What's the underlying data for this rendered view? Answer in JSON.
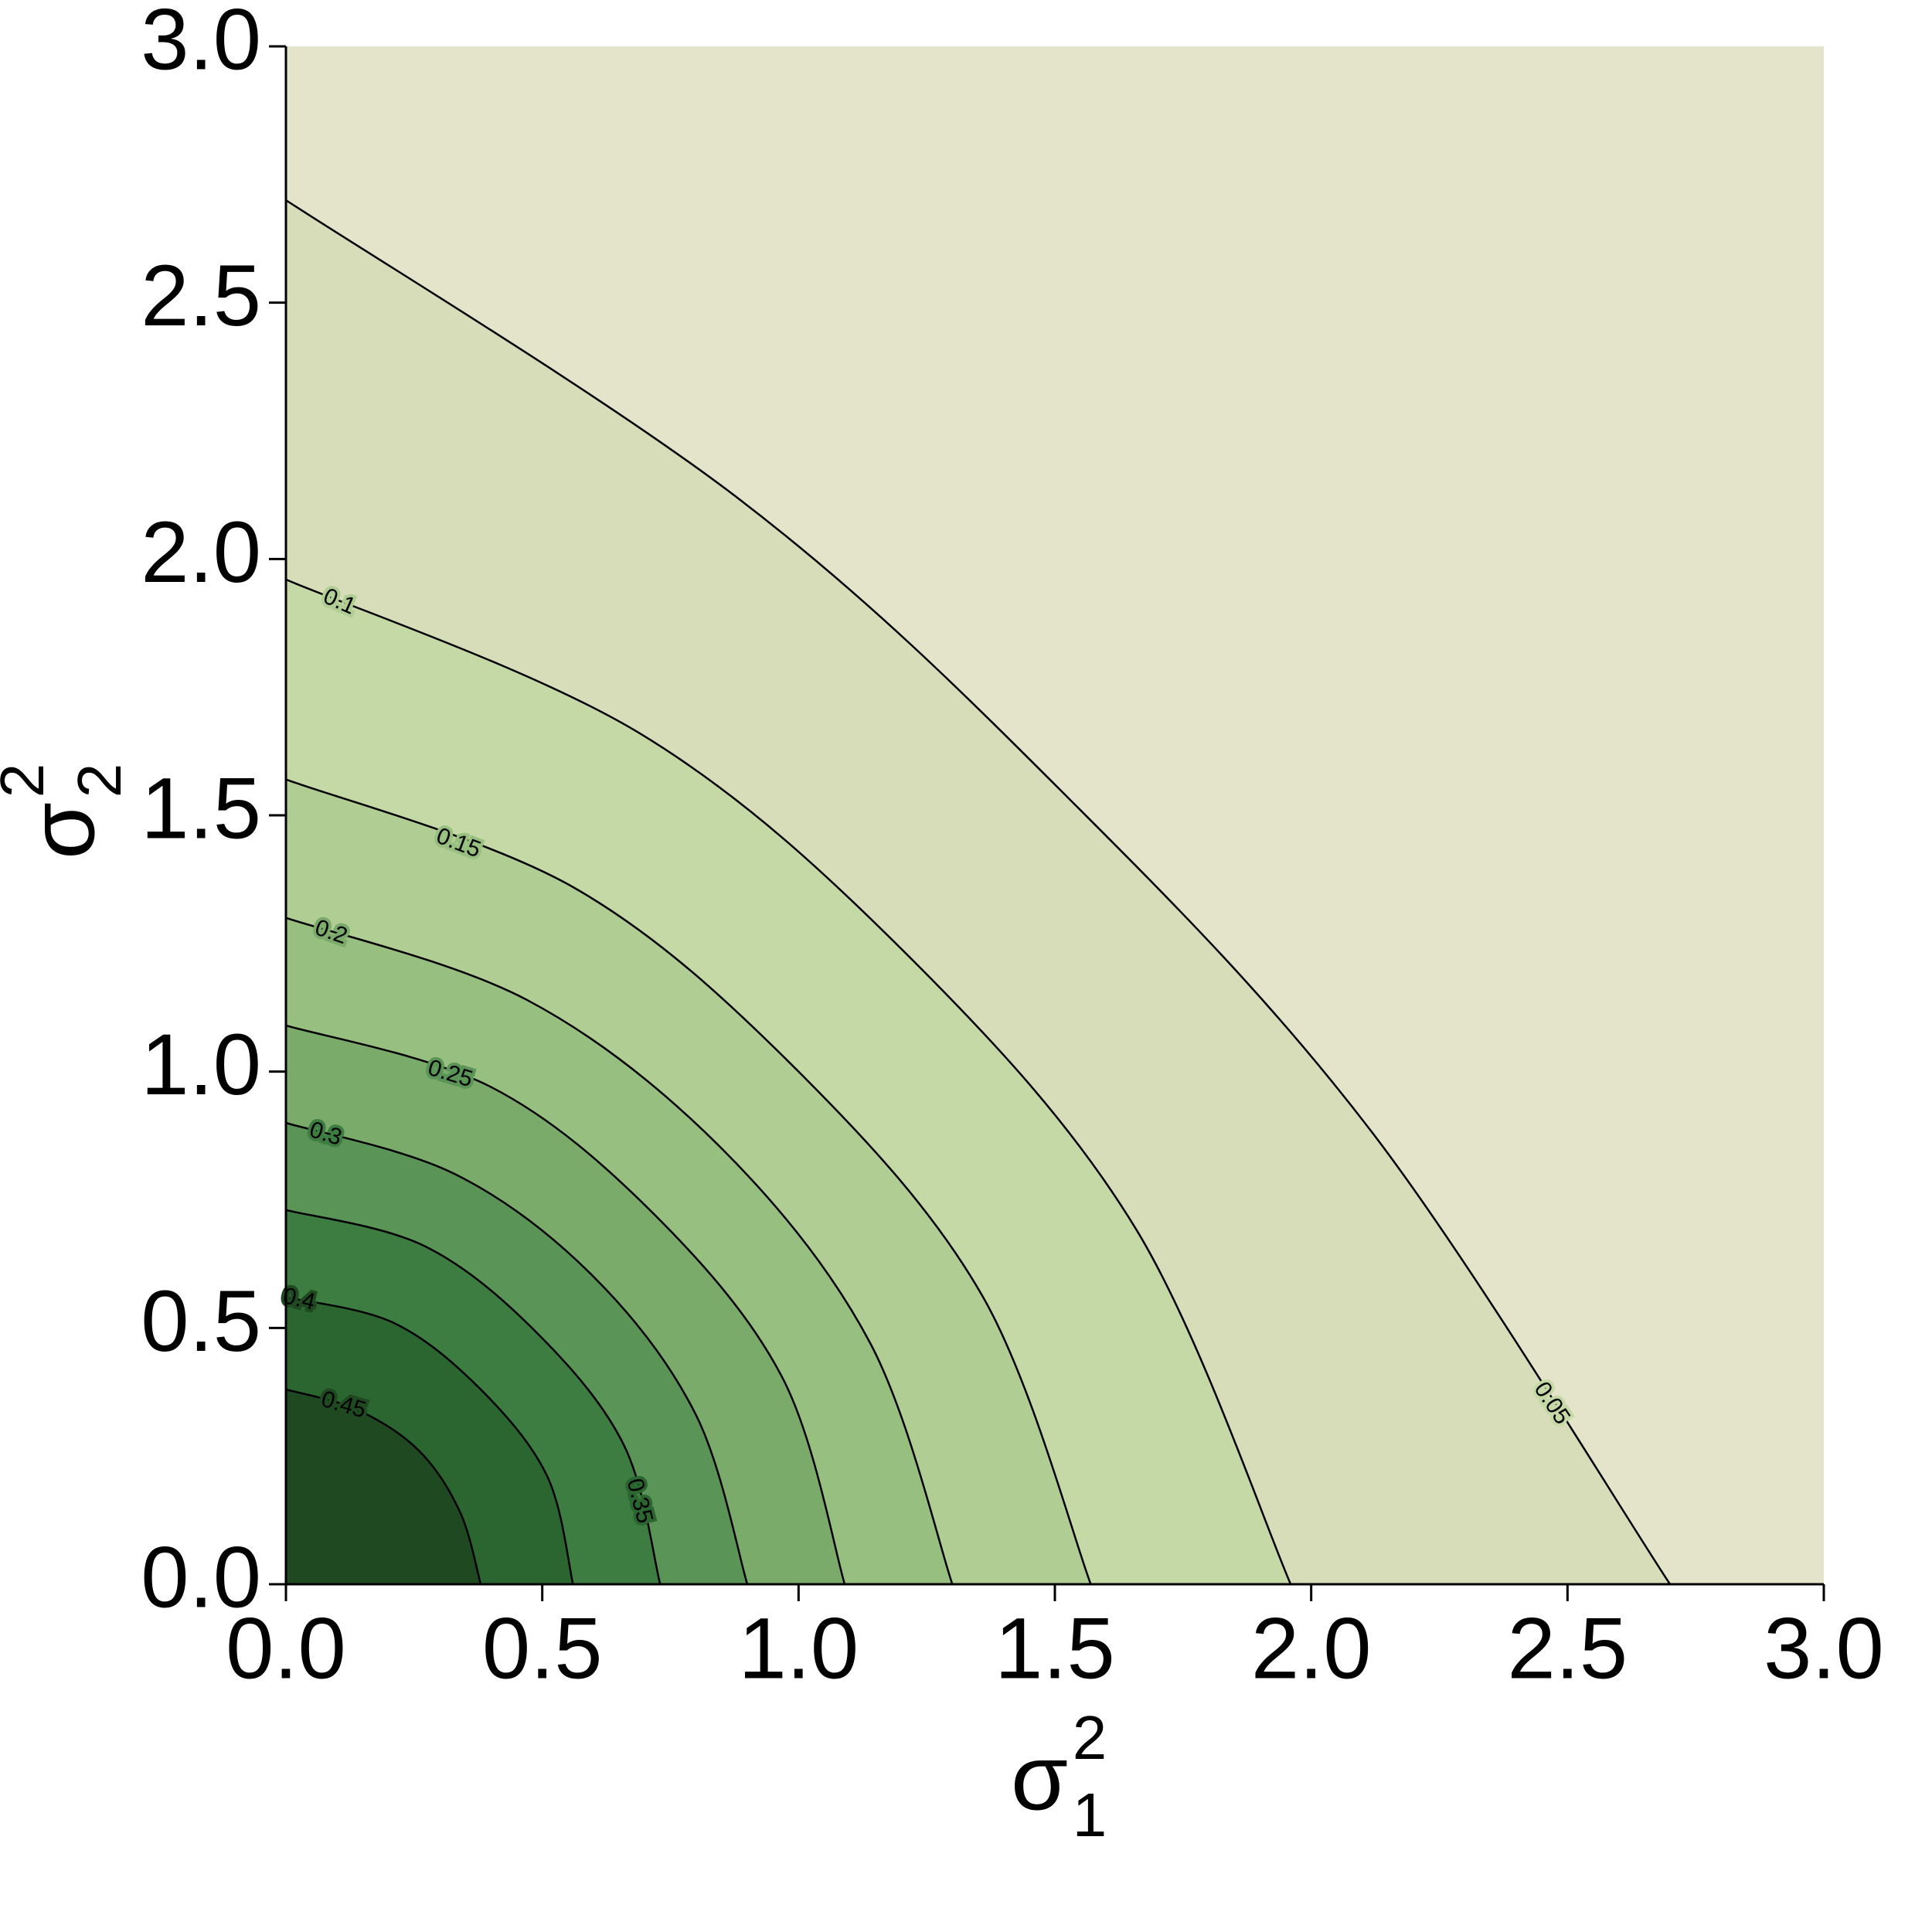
{
  "chart_data": {
    "type": "contour",
    "xlabel": {
      "base": "σ",
      "sub": "1",
      "sup": "2"
    },
    "ylabel": {
      "base": "σ",
      "sub": "2",
      "sup": "2"
    },
    "xlim": [
      0,
      3
    ],
    "ylim": [
      0,
      3
    ],
    "xticks": [
      {
        "value": 0,
        "label": "0.0"
      },
      0.5,
      {
        "value": 1,
        "label": "1.0"
      },
      1.5,
      {
        "value": 2,
        "label": "2.0"
      },
      2.5,
      {
        "value": 3,
        "label": "3.0"
      }
    ],
    "yticks": [
      {
        "value": 0,
        "label": "0.0"
      },
      0.5,
      {
        "value": 1,
        "label": "1.0"
      },
      1.5,
      {
        "value": 2,
        "label": "2.0"
      },
      2.5,
      {
        "value": 3,
        "label": "3.0"
      }
    ],
    "background": "#e4e4ca",
    "line_color": "#000000",
    "contours": [
      {
        "level": 0.05,
        "color": "#d6ddb8",
        "x": [
          0,
          0.88,
          1.53,
          2.12,
          2.7
        ],
        "y": [
          2.7,
          2.12,
          1.53,
          0.88,
          0
        ]
      },
      {
        "level": 0.1,
        "color": "#c5d9a6",
        "x": [
          0,
          0.69,
          1.22,
          1.66,
          1.96
        ],
        "y": [
          1.96,
          1.66,
          1.22,
          0.69,
          0
        ]
      },
      {
        "level": 0.15,
        "color": "#b0cd93",
        "x": [
          0,
          0.56,
          1.0,
          1.36,
          1.57
        ],
        "y": [
          1.57,
          1.36,
          1.0,
          0.56,
          0
        ]
      },
      {
        "level": 0.2,
        "color": "#97bf7f",
        "x": [
          0,
          0.47,
          0.85,
          1.14,
          1.3
        ],
        "y": [
          1.3,
          1.14,
          0.85,
          0.47,
          0
        ]
      },
      {
        "level": 0.25,
        "color": "#7aab6a",
        "x": [
          0,
          0.4,
          0.72,
          0.97,
          1.09
        ],
        "y": [
          1.09,
          0.97,
          0.72,
          0.4,
          0
        ]
      },
      {
        "level": 0.3,
        "color": "#5b9457",
        "x": [
          0,
          0.33,
          0.6,
          0.8,
          0.9
        ],
        "y": [
          0.9,
          0.8,
          0.6,
          0.33,
          0
        ]
      },
      {
        "level": 0.35,
        "color": "#3e7d41",
        "x": [
          0,
          0.27,
          0.49,
          0.66,
          0.73
        ],
        "y": [
          0.73,
          0.66,
          0.49,
          0.27,
          0
        ]
      },
      {
        "level": 0.4,
        "color": "#2b6630",
        "x": [
          0,
          0.21,
          0.38,
          0.51,
          0.56
        ],
        "y": [
          0.56,
          0.51,
          0.38,
          0.21,
          0
        ]
      },
      {
        "level": 0.45,
        "color": "#1f4a21",
        "x": [
          0,
          0.14,
          0.26,
          0.34,
          0.38
        ],
        "y": [
          0.38,
          0.34,
          0.26,
          0.14,
          0
        ]
      }
    ]
  }
}
